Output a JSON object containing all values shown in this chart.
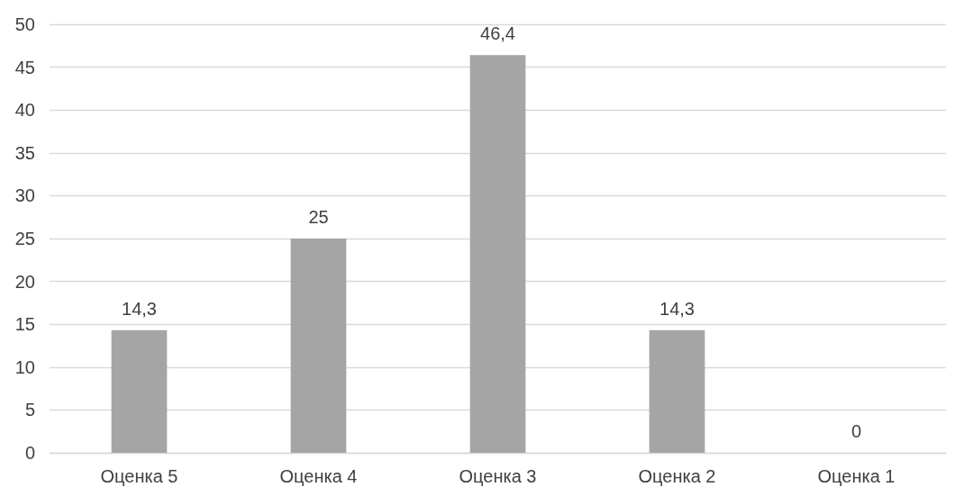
{
  "chart_data": {
    "type": "bar",
    "categories": [
      "Оценка 5",
      "Оценка 4",
      "Оценка 3",
      "Оценка 2",
      "Оценка 1"
    ],
    "values": [
      14.3,
      25,
      46.4,
      14.3,
      0
    ],
    "value_labels": [
      "14,3",
      "25",
      "46,4",
      "14,3",
      "0"
    ],
    "color": "#a5a5a5",
    "ylim": [
      0,
      50
    ],
    "yticks": [
      0,
      5,
      10,
      15,
      20,
      25,
      30,
      35,
      40,
      45,
      50
    ],
    "grid": "y"
  }
}
